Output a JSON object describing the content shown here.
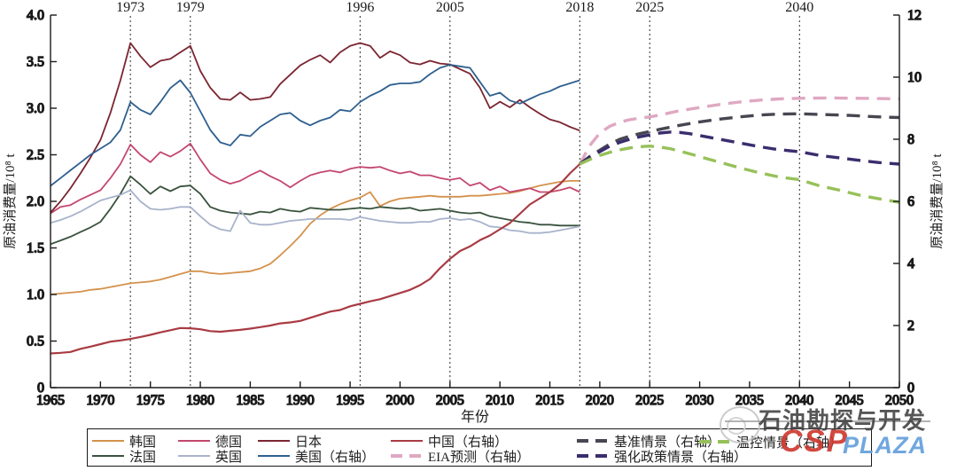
{
  "chart_data": {
    "type": "line",
    "title": "",
    "x_axis": {
      "label": "年份",
      "range": [
        1965,
        2050
      ],
      "ticks": [
        1965,
        1970,
        1975,
        1980,
        1985,
        1990,
        1995,
        2000,
        2005,
        2010,
        2015,
        2020,
        2025,
        2030,
        2035,
        2040,
        2045,
        2050
      ]
    },
    "y_axis_left": {
      "label": "原油消费量/10⁸ t",
      "range": [
        0,
        4
      ],
      "tick_step": 0.5,
      "ticks": [
        "0",
        "0.5",
        "1.0",
        "1.5",
        "2.0",
        "2.5",
        "3.0",
        "3.5",
        "4.0"
      ]
    },
    "y_axis_right": {
      "label": "原油消费量/10⁸ t",
      "range": [
        0,
        12
      ],
      "tick_step": 2,
      "ticks": [
        "0",
        "2",
        "4",
        "6",
        "8",
        "10",
        "12"
      ]
    },
    "event_years": [
      1973,
      1979,
      1996,
      2005,
      2018,
      2025,
      2040
    ],
    "grid": false,
    "series": [
      {
        "id": "korea",
        "name": "韩国",
        "axis": "left",
        "color": "#D4924C",
        "dashed": false,
        "start": 1965,
        "step": 1,
        "values": [
          1.0,
          1.01,
          1.02,
          1.03,
          1.05,
          1.06,
          1.08,
          1.1,
          1.12,
          1.13,
          1.14,
          1.16,
          1.19,
          1.22,
          1.25,
          1.25,
          1.23,
          1.22,
          1.23,
          1.24,
          1.25,
          1.28,
          1.33,
          1.42,
          1.52,
          1.63,
          1.76,
          1.85,
          1.92,
          1.97,
          2.01,
          2.04,
          2.1,
          1.95,
          2.0,
          2.03,
          2.04,
          2.05,
          2.06,
          2.05,
          2.05,
          2.05,
          2.06,
          2.06,
          2.07,
          2.08,
          2.09,
          2.11,
          2.14,
          2.17,
          2.19,
          2.21,
          2.22,
          2.22
        ]
      },
      {
        "id": "france",
        "name": "法国",
        "axis": "left",
        "color": "#39523D",
        "dashed": false,
        "start": 1965,
        "step": 1,
        "values": [
          1.54,
          1.58,
          1.62,
          1.67,
          1.72,
          1.78,
          1.92,
          2.08,
          2.27,
          2.18,
          2.08,
          2.16,
          2.11,
          2.16,
          2.17,
          2.08,
          1.94,
          1.9,
          1.88,
          1.87,
          1.86,
          1.89,
          1.88,
          1.92,
          1.9,
          1.89,
          1.93,
          1.92,
          1.91,
          1.91,
          1.92,
          1.93,
          1.92,
          1.94,
          1.93,
          1.92,
          1.93,
          1.9,
          1.91,
          1.92,
          1.9,
          1.88,
          1.87,
          1.88,
          1.84,
          1.82,
          1.8,
          1.78,
          1.77,
          1.75,
          1.75,
          1.74,
          1.74,
          1.74
        ]
      },
      {
        "id": "uk",
        "name": "英国",
        "axis": "left",
        "color": "#A8B3CB",
        "dashed": false,
        "start": 1965,
        "step": 1,
        "values": [
          1.77,
          1.8,
          1.84,
          1.89,
          1.95,
          2.01,
          2.04,
          2.07,
          2.12,
          2.0,
          1.92,
          1.91,
          1.92,
          1.94,
          1.94,
          1.84,
          1.75,
          1.7,
          1.68,
          1.9,
          1.77,
          1.75,
          1.75,
          1.77,
          1.79,
          1.8,
          1.81,
          1.81,
          1.81,
          1.81,
          1.8,
          1.83,
          1.81,
          1.79,
          1.78,
          1.77,
          1.77,
          1.78,
          1.78,
          1.81,
          1.82,
          1.8,
          1.81,
          1.78,
          1.73,
          1.72,
          1.69,
          1.68,
          1.66,
          1.66,
          1.67,
          1.69,
          1.71,
          1.73
        ]
      },
      {
        "id": "germany",
        "name": "德国",
        "axis": "left",
        "color": "#C4476E",
        "dashed": false,
        "start": 1965,
        "step": 1,
        "values": [
          1.87,
          1.94,
          1.96,
          2.02,
          2.07,
          2.12,
          2.25,
          2.4,
          2.61,
          2.5,
          2.42,
          2.53,
          2.48,
          2.54,
          2.62,
          2.45,
          2.3,
          2.23,
          2.19,
          2.22,
          2.28,
          2.33,
          2.27,
          2.22,
          2.15,
          2.22,
          2.28,
          2.31,
          2.33,
          2.31,
          2.35,
          2.37,
          2.36,
          2.37,
          2.33,
          2.3,
          2.32,
          2.28,
          2.28,
          2.25,
          2.23,
          2.25,
          2.17,
          2.2,
          2.12,
          2.16,
          2.1,
          2.12,
          2.14,
          2.1,
          2.1,
          2.12,
          2.15,
          2.1
        ]
      },
      {
        "id": "japan",
        "name": "日本",
        "axis": "left",
        "color": "#7B2531",
        "dashed": false,
        "start": 1965,
        "step": 1,
        "values": [
          1.88,
          2.0,
          2.14,
          2.3,
          2.47,
          2.66,
          2.95,
          3.3,
          3.7,
          3.56,
          3.44,
          3.51,
          3.53,
          3.6,
          3.67,
          3.4,
          3.22,
          3.1,
          3.09,
          3.17,
          3.09,
          3.1,
          3.12,
          3.26,
          3.36,
          3.46,
          3.52,
          3.57,
          3.49,
          3.6,
          3.67,
          3.7,
          3.67,
          3.54,
          3.61,
          3.57,
          3.49,
          3.47,
          3.51,
          3.48,
          3.47,
          3.42,
          3.37,
          3.22,
          3.0,
          3.07,
          3.01,
          3.09,
          3.01,
          2.94,
          2.88,
          2.85,
          2.8,
          2.76
        ]
      },
      {
        "id": "usa",
        "name": "美国（右轴）",
        "axis": "right",
        "color": "#2F608F",
        "dashed": false,
        "start": 1965,
        "step": 1,
        "values": [
          6.5,
          6.75,
          7.0,
          7.25,
          7.5,
          7.7,
          7.9,
          8.3,
          9.2,
          8.95,
          8.8,
          9.2,
          9.65,
          9.9,
          9.5,
          8.9,
          8.3,
          7.9,
          7.8,
          8.15,
          8.1,
          8.4,
          8.6,
          8.8,
          8.85,
          8.6,
          8.45,
          8.6,
          8.7,
          8.95,
          8.9,
          9.2,
          9.4,
          9.55,
          9.75,
          9.8,
          9.8,
          9.85,
          10.1,
          10.3,
          10.4,
          10.35,
          10.3,
          9.85,
          9.4,
          9.5,
          9.25,
          9.15,
          9.3,
          9.45,
          9.55,
          9.7,
          9.8,
          9.9
        ]
      },
      {
        "id": "china",
        "name": "中国（右轴）",
        "axis": "right",
        "color": "#A93B43",
        "dashed": false,
        "start": 1965,
        "step": 1,
        "values": [
          1.1,
          1.12,
          1.15,
          1.25,
          1.32,
          1.4,
          1.48,
          1.52,
          1.57,
          1.63,
          1.7,
          1.78,
          1.85,
          1.92,
          1.91,
          1.88,
          1.82,
          1.8,
          1.83,
          1.86,
          1.9,
          1.95,
          2.0,
          2.07,
          2.1,
          2.15,
          2.25,
          2.35,
          2.45,
          2.5,
          2.62,
          2.7,
          2.78,
          2.85,
          2.95,
          3.05,
          3.15,
          3.3,
          3.5,
          3.85,
          4.15,
          4.4,
          4.55,
          4.75,
          4.9,
          5.1,
          5.3,
          5.6,
          5.9,
          6.1,
          6.3,
          6.55,
          6.9,
          7.2
        ]
      },
      {
        "id": "eia",
        "name": "EIA预测（右轴）",
        "axis": "right",
        "color": "#DFA8C2",
        "dashed": true,
        "points": [
          [
            2018,
            7.2
          ],
          [
            2019,
            7.8
          ],
          [
            2020,
            8.2
          ],
          [
            2021,
            8.42
          ],
          [
            2022,
            8.55
          ],
          [
            2023,
            8.63
          ],
          [
            2024,
            8.68
          ],
          [
            2025,
            8.72
          ],
          [
            2026,
            8.78
          ],
          [
            2028,
            8.92
          ],
          [
            2030,
            9.02
          ],
          [
            2032,
            9.12
          ],
          [
            2034,
            9.2
          ],
          [
            2036,
            9.26
          ],
          [
            2038,
            9.3
          ],
          [
            2040,
            9.32
          ],
          [
            2043,
            9.33
          ],
          [
            2046,
            9.32
          ],
          [
            2050,
            9.3
          ]
        ]
      },
      {
        "id": "baseline",
        "name": "基准情景（右轴）",
        "axis": "right",
        "color": "#474752",
        "dashed": true,
        "points": [
          [
            2018,
            7.2
          ],
          [
            2019,
            7.45
          ],
          [
            2020,
            7.65
          ],
          [
            2021,
            7.85
          ],
          [
            2022,
            8.0
          ],
          [
            2023,
            8.1
          ],
          [
            2024,
            8.18
          ],
          [
            2025,
            8.25
          ],
          [
            2026,
            8.32
          ],
          [
            2028,
            8.45
          ],
          [
            2030,
            8.56
          ],
          [
            2032,
            8.65
          ],
          [
            2034,
            8.72
          ],
          [
            2036,
            8.78
          ],
          [
            2038,
            8.81
          ],
          [
            2040,
            8.82
          ],
          [
            2042,
            8.8
          ],
          [
            2045,
            8.77
          ],
          [
            2048,
            8.72
          ],
          [
            2050,
            8.7
          ]
        ]
      },
      {
        "id": "policy",
        "name": "强化政策情景（右轴）",
        "axis": "right",
        "color": "#3B2D6E",
        "dashed": true,
        "points": [
          [
            2018,
            7.2
          ],
          [
            2019,
            7.42
          ],
          [
            2020,
            7.6
          ],
          [
            2021,
            7.78
          ],
          [
            2022,
            7.9
          ],
          [
            2023,
            8.0
          ],
          [
            2024,
            8.08
          ],
          [
            2025,
            8.14
          ],
          [
            2026,
            8.2
          ],
          [
            2027,
            8.23
          ],
          [
            2028,
            8.22
          ],
          [
            2029,
            8.18
          ],
          [
            2030,
            8.12
          ],
          [
            2032,
            8.0
          ],
          [
            2034,
            7.88
          ],
          [
            2036,
            7.76
          ],
          [
            2038,
            7.66
          ],
          [
            2040,
            7.6
          ],
          [
            2042,
            7.48
          ],
          [
            2044,
            7.4
          ],
          [
            2046,
            7.32
          ],
          [
            2048,
            7.25
          ],
          [
            2050,
            7.2
          ]
        ]
      },
      {
        "id": "temp",
        "name": "温控情景（右轴）",
        "axis": "right",
        "color": "#96C159",
        "dashed": true,
        "points": [
          [
            2018,
            7.2
          ],
          [
            2019,
            7.35
          ],
          [
            2020,
            7.48
          ],
          [
            2021,
            7.58
          ],
          [
            2022,
            7.66
          ],
          [
            2023,
            7.72
          ],
          [
            2024,
            7.76
          ],
          [
            2025,
            7.78
          ],
          [
            2026,
            7.75
          ],
          [
            2027,
            7.7
          ],
          [
            2028,
            7.62
          ],
          [
            2029,
            7.53
          ],
          [
            2030,
            7.44
          ],
          [
            2032,
            7.26
          ],
          [
            2034,
            7.08
          ],
          [
            2036,
            6.92
          ],
          [
            2038,
            6.78
          ],
          [
            2040,
            6.7
          ],
          [
            2042,
            6.5
          ],
          [
            2044,
            6.36
          ],
          [
            2046,
            6.2
          ],
          [
            2048,
            6.08
          ],
          [
            2050,
            5.97
          ]
        ]
      }
    ]
  },
  "legend": {
    "order": [
      "korea",
      "germany",
      "japan",
      "china",
      "baseline",
      "france",
      "uk",
      "usa",
      "eia",
      "policy",
      "temp"
    ]
  },
  "watermark": {
    "cn_text": "石油勘探与开发",
    "latin_red": "CSP",
    "latin_blue": "PLAZA"
  }
}
